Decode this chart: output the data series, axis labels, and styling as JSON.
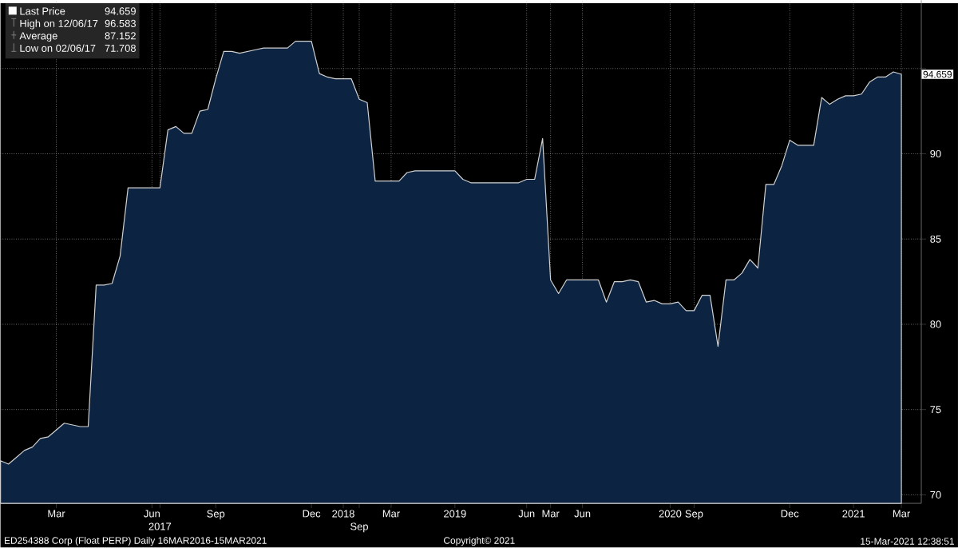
{
  "chart_data": {
    "type": "area",
    "categories": [
      null,
      null,
      null,
      null,
      null,
      null,
      null,
      "Mar",
      null,
      null,
      null,
      null,
      null,
      null,
      null,
      null,
      null,
      null,
      null,
      "Jun",
      "2017",
      null,
      null,
      null,
      null,
      null,
      null,
      "Sep",
      null,
      null,
      null,
      null,
      null,
      null,
      null,
      null,
      null,
      null,
      null,
      "Dec",
      null,
      null,
      null,
      "2018",
      null,
      "Sep",
      null,
      null,
      null,
      "Mar",
      null,
      null,
      null,
      null,
      null,
      null,
      null,
      "2019",
      null,
      null,
      null,
      null,
      null,
      null,
      null,
      null,
      "Jun",
      null,
      null,
      "Mar",
      null,
      null,
      null,
      "Jun",
      null,
      null,
      null,
      null,
      null,
      null,
      null,
      null,
      null,
      null,
      "2020",
      null,
      null,
      "Sep",
      null,
      null,
      null,
      null,
      null,
      null,
      null,
      null,
      null,
      null,
      null,
      "Dec",
      null,
      null,
      null,
      null,
      null,
      null,
      null,
      "2021",
      null,
      null,
      null,
      null,
      null,
      "Mar"
    ],
    "series": [
      {
        "name": "Last Price",
        "color": "#0c2442",
        "values": [
          72.0,
          71.8,
          72.2,
          72.6,
          72.8,
          73.3,
          73.4,
          73.8,
          74.2,
          74.1,
          74.0,
          74.0,
          82.3,
          82.3,
          82.4,
          84.0,
          88.0,
          88.0,
          88.0,
          88.0,
          88.0,
          91.4,
          91.6,
          91.2,
          91.2,
          92.5,
          92.6,
          94.4,
          96.0,
          96.0,
          95.9,
          96.0,
          96.1,
          96.2,
          96.2,
          96.2,
          96.2,
          96.6,
          96.6,
          96.6,
          94.7,
          94.5,
          94.4,
          94.4,
          94.4,
          93.2,
          93.0,
          88.4,
          88.4,
          88.4,
          88.4,
          88.9,
          89.0,
          89.0,
          89.0,
          89.0,
          89.0,
          89.0,
          88.5,
          88.3,
          88.3,
          88.3,
          88.3,
          88.3,
          88.3,
          88.3,
          88.5,
          88.5,
          90.9,
          82.6,
          81.8,
          82.6,
          82.6,
          82.6,
          82.6,
          82.6,
          81.3,
          82.5,
          82.5,
          82.6,
          82.5,
          81.3,
          81.4,
          81.2,
          81.2,
          81.3,
          80.8,
          80.8,
          81.7,
          81.7,
          78.7,
          82.6,
          82.6,
          83.0,
          83.8,
          83.3,
          88.2,
          88.2,
          89.3,
          90.8,
          90.5,
          90.5,
          90.5,
          93.3,
          92.9,
          93.2,
          93.4,
          93.4,
          93.5,
          94.2,
          94.5,
          94.5,
          94.8,
          94.659
        ]
      }
    ],
    "ylim": [
      69.5,
      99
    ],
    "yticks": [
      70,
      75,
      80,
      85,
      90,
      {
        "value": 95,
        "label": null
      }
    ],
    "grid": true,
    "legend": "top left",
    "marker": "none",
    "annotations": [
      "94.659",
      "High on 12/06/17",
      "96.583",
      "Average",
      "87.152",
      "Low on 02/06/17",
      "71.708",
      "94.659",
      "ED254388 Corp (Float PERP)  Daily 16MAR2016-15MAR2021",
      "Copyright© 2021",
      "15-Mar-2021 12:38:51"
    ]
  }
}
